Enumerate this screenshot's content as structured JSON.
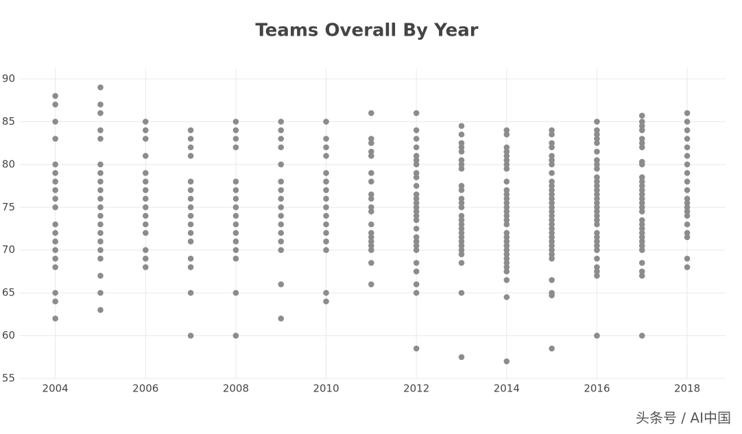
{
  "chart_data": {
    "type": "scatter",
    "title": "Teams Overall By Year",
    "watermark": "头条号 / AI中国",
    "color": "#8c8c8c",
    "grid": true,
    "xlim": [
      2003.2,
      2018.85
    ],
    "xticks": [
      2004,
      2006,
      2008,
      2010,
      2012,
      2014,
      2016,
      2018
    ],
    "ylim": [
      55,
      91.2
    ],
    "yticks": [
      55,
      60,
      65,
      70,
      75,
      80,
      85,
      90
    ],
    "series": [
      {
        "x": 2004,
        "values": [
          88,
          87,
          85,
          83,
          80,
          79,
          78,
          77,
          76,
          75,
          73,
          72,
          71,
          70,
          69,
          68,
          65,
          64,
          62
        ]
      },
      {
        "x": 2005,
        "values": [
          89,
          87,
          86,
          84,
          83,
          80,
          79,
          78,
          77,
          76,
          75,
          74,
          73,
          72,
          71,
          70,
          69,
          67,
          65,
          63
        ]
      },
      {
        "x": 2006,
        "values": [
          85,
          84,
          83,
          81,
          79,
          78,
          77,
          76,
          75,
          74,
          73,
          72,
          70,
          69,
          68
        ]
      },
      {
        "x": 2007,
        "values": [
          84,
          83,
          82,
          81,
          78,
          77,
          76,
          75,
          74,
          73,
          72,
          71,
          69,
          68,
          65,
          60
        ]
      },
      {
        "x": 2008,
        "values": [
          85,
          84,
          83,
          82,
          78,
          77,
          76,
          75,
          74,
          73,
          72,
          71,
          70,
          69,
          65,
          60
        ]
      },
      {
        "x": 2009,
        "values": [
          85,
          84,
          83,
          82,
          80,
          78,
          77,
          76,
          75,
          74,
          73,
          72,
          71,
          70,
          66,
          62
        ]
      },
      {
        "x": 2010,
        "values": [
          85,
          83,
          82,
          81,
          79,
          78,
          77,
          76,
          75,
          74,
          73,
          72,
          71,
          70,
          65,
          64
        ]
      },
      {
        "x": 2011,
        "values": [
          86,
          83,
          82.5,
          81.5,
          81,
          79,
          78,
          76.5,
          76,
          75,
          74.5,
          73,
          72,
          71.5,
          71,
          70.5,
          70,
          68.5,
          66
        ]
      },
      {
        "x": 2012,
        "values": [
          86,
          84,
          83,
          82,
          81,
          80.5,
          80,
          79,
          78.5,
          77.5,
          76.5,
          76,
          75.5,
          75,
          74.5,
          74,
          73.5,
          72.5,
          71.5,
          71,
          70.5,
          70,
          68.5,
          67.5,
          66,
          65,
          58.5
        ]
      },
      {
        "x": 2013,
        "values": [
          84.5,
          83.5,
          82.5,
          82,
          81.5,
          80.5,
          80,
          79.5,
          77.5,
          77,
          76,
          75.5,
          75,
          74,
          73.5,
          73,
          72.5,
          72,
          71.5,
          71,
          70.5,
          70,
          69.5,
          68.5,
          65,
          57.5
        ]
      },
      {
        "x": 2014,
        "values": [
          84,
          83.5,
          82,
          81.5,
          81,
          80.5,
          80,
          79.5,
          78,
          77,
          76.5,
          76,
          75.5,
          75,
          74.5,
          74,
          73.5,
          73,
          72,
          71.5,
          71,
          70.5,
          70,
          69.5,
          69,
          68.5,
          68,
          67.5,
          66.5,
          64.5,
          57
        ]
      },
      {
        "x": 2015,
        "values": [
          84,
          83.5,
          82.5,
          82,
          81,
          80.5,
          80,
          79,
          78,
          77.5,
          77,
          76.5,
          76,
          75.5,
          75,
          74.5,
          74,
          73.5,
          73,
          72.5,
          72,
          71.5,
          71,
          70.5,
          70,
          69.5,
          69,
          66.5,
          65,
          64.7,
          58.5
        ]
      },
      {
        "x": 2016,
        "values": [
          85,
          84,
          83.5,
          83,
          82.5,
          81.5,
          80.5,
          80,
          79.5,
          78.5,
          78,
          77.5,
          77,
          76.5,
          76,
          75.5,
          75,
          74.5,
          74,
          73.5,
          73,
          72,
          71.5,
          71,
          70.5,
          70,
          69,
          68,
          67.5,
          67,
          60
        ]
      },
      {
        "x": 2017,
        "values": [
          85.7,
          85,
          84.5,
          84,
          83,
          82.5,
          82,
          80.3,
          80,
          78.5,
          78,
          77.5,
          77,
          76.5,
          76,
          75.5,
          75,
          74.5,
          73.5,
          73,
          72.5,
          72,
          71.5,
          71,
          70.5,
          70,
          68.5,
          67.5,
          67,
          60
        ]
      },
      {
        "x": 2018,
        "values": [
          86,
          85,
          84,
          83,
          82,
          81,
          80,
          79,
          78,
          77,
          76,
          75.5,
          75,
          74.5,
          74,
          73,
          72,
          71.5,
          69,
          68
        ]
      }
    ]
  }
}
